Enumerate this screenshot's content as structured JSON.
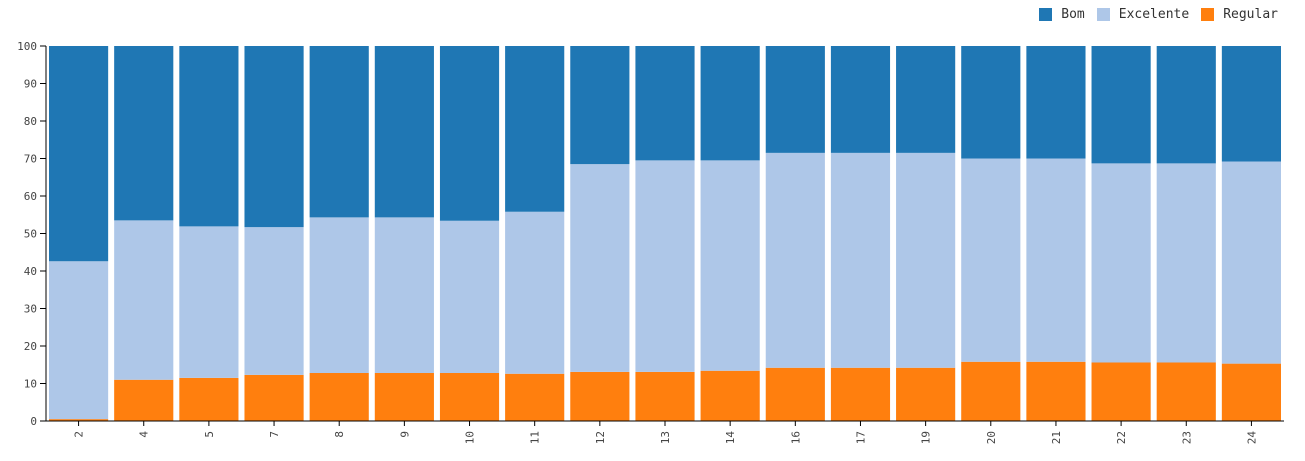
{
  "chart_data": {
    "type": "bar",
    "stacked": true,
    "categories": [
      "2",
      "4",
      "5",
      "7",
      "8",
      "9",
      "10",
      "11",
      "12",
      "13",
      "14",
      "16",
      "17",
      "19",
      "20",
      "21",
      "22",
      "23",
      "24"
    ],
    "series": [
      {
        "name": "Regular",
        "color": "#ff7f0e",
        "values": [
          0.5,
          11,
          11.5,
          12.3,
          12.8,
          12.8,
          12.8,
          12.6,
          13.1,
          13.1,
          13.4,
          14.2,
          14.2,
          14.2,
          15.8,
          15.8,
          15.6,
          15.6,
          15.3
        ]
      },
      {
        "name": "Excelente",
        "color": "#aec7e8",
        "values": [
          42.1,
          42.5,
          40.4,
          39.4,
          41.5,
          41.5,
          40.6,
          43.2,
          55.4,
          56.4,
          56.1,
          57.3,
          57.3,
          57.3,
          54.2,
          54.2,
          53.1,
          53.1,
          53.9
        ]
      },
      {
        "name": "Bom",
        "color": "#1f77b4",
        "values": [
          57.4,
          46.5,
          48.1,
          48.3,
          45.7,
          45.7,
          46.6,
          44.2,
          31.5,
          30.5,
          30.5,
          28.5,
          28.5,
          28.5,
          30.0,
          30.0,
          31.3,
          31.3,
          30.8
        ]
      }
    ],
    "ylim": [
      0,
      100
    ],
    "yticks": [
      0,
      10,
      20,
      30,
      40,
      50,
      60,
      70,
      80,
      90,
      100
    ],
    "legend": {
      "position": "top-right",
      "order": [
        "Bom",
        "Excelente",
        "Regular"
      ]
    }
  }
}
